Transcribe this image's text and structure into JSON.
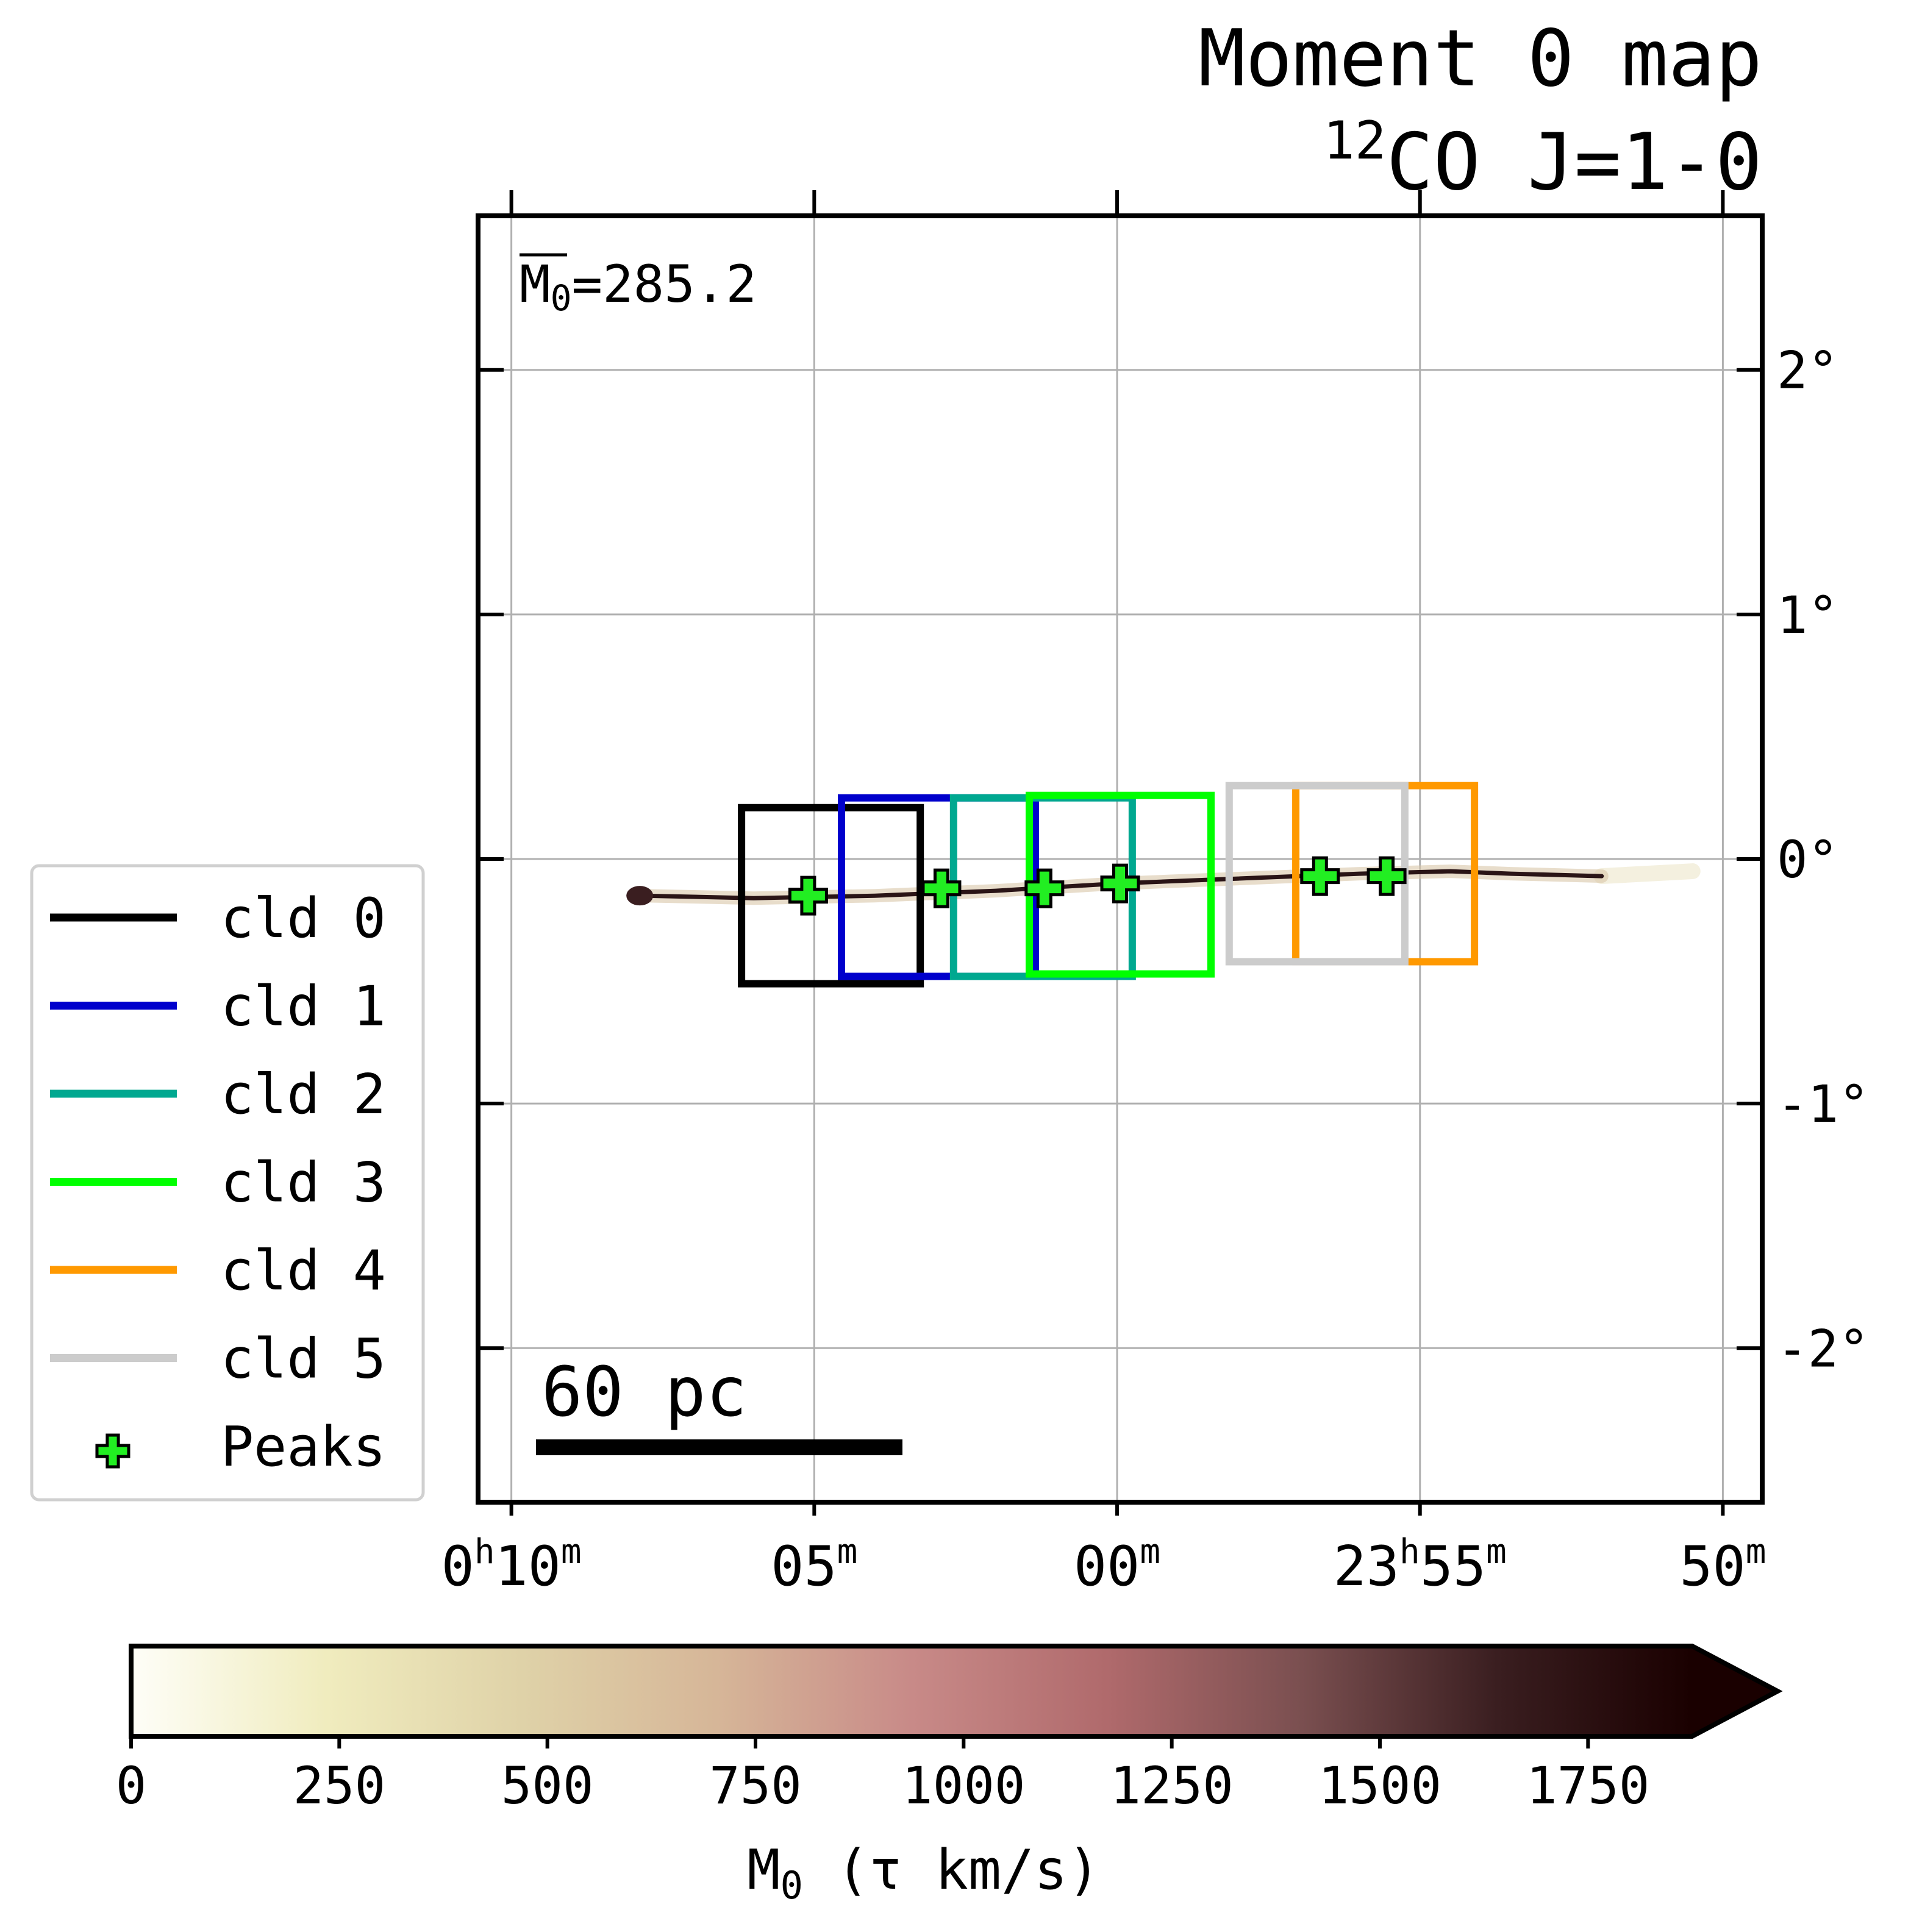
{
  "chart_data": {
    "type": "heatmap",
    "title_line1": "Moment 0 map",
    "title_line2_sup": "12",
    "title_line2_rest": "CO J=1-0",
    "mean_label_base": "M",
    "mean_label_sub": "0",
    "mean_label_value": "=285.2",
    "x_axis": {
      "scale": "right_ascension",
      "ticks_min": [
        10,
        5,
        0,
        -5,
        -10
      ],
      "tick_labels": [
        {
          "h": "0",
          "m": "10"
        },
        {
          "h": "",
          "m": "05"
        },
        {
          "h": "",
          "m": "00"
        },
        {
          "h": "23",
          "m": "55"
        },
        {
          "h": "",
          "m": "50"
        }
      ],
      "xlim_min": [
        10.55,
        -10.65
      ]
    },
    "y_axis": {
      "ticks": [
        2,
        1,
        0,
        -1,
        -2
      ],
      "tick_labels": [
        "2°",
        "1°",
        "0°",
        "-1°",
        "-2°"
      ],
      "ylim": [
        -2.63,
        2.63
      ],
      "side": "right"
    },
    "grid": true,
    "filament": {
      "x_min": [
        7.8,
        6.0,
        4.0,
        2.0,
        0.0,
        -2.0,
        -4.0,
        -5.5,
        -6.5,
        -8.0
      ],
      "y_deg": [
        -0.15,
        -0.16,
        -0.15,
        -0.13,
        -0.1,
        -0.08,
        -0.06,
        -0.05,
        -0.06,
        -0.07
      ],
      "faint_extent_min": [
        -8.0,
        -9.5
      ]
    },
    "clouds": [
      {
        "name": "cld 0",
        "color": "#000000",
        "x_min": [
          3.25,
          6.2
        ],
        "y_deg": [
          -0.51,
          0.21
        ]
      },
      {
        "name": "cld 1",
        "color": "#0000cc",
        "x_min": [
          1.35,
          4.55
        ],
        "y_deg": [
          -0.48,
          0.25
        ]
      },
      {
        "name": "cld 2",
        "color": "#00a890",
        "x_min": [
          -0.25,
          2.7
        ],
        "y_deg": [
          -0.48,
          0.25
        ]
      },
      {
        "name": "cld 3",
        "color": "#00ff00",
        "x_min": [
          -1.55,
          1.45
        ],
        "y_deg": [
          -0.47,
          0.26
        ]
      },
      {
        "name": "cld 4",
        "color": "#ff9900",
        "x_min": [
          -5.9,
          -2.95
        ],
        "y_deg": [
          -0.42,
          0.3
        ]
      },
      {
        "name": "cld 5",
        "color": "#cccccc",
        "x_min": [
          -4.75,
          -1.85
        ],
        "y_deg": [
          -0.42,
          0.3
        ]
      }
    ],
    "peaks": {
      "name": "Peaks",
      "x_min": [
        5.1,
        2.9,
        1.2,
        -0.05,
        -3.35,
        -4.45
      ],
      "y_deg": [
        -0.15,
        -0.12,
        -0.12,
        -0.1,
        -0.07,
        -0.07
      ]
    },
    "scalebar_label": "60 pc",
    "colorbar": {
      "label_base": "M",
      "label_sub": "0",
      "label_rest": " (τ km/s)",
      "range": [
        0,
        1875
      ],
      "ticks": [
        0,
        250,
        500,
        750,
        1000,
        1250,
        1500,
        1750
      ],
      "extend": "max",
      "colors": [
        "#fefef8",
        "#f0ecbe",
        "#dfd2a8",
        "#d6b698",
        "#c88a88",
        "#b06a6c",
        "#7a4f50",
        "#3a1e20",
        "#1a0000"
      ]
    }
  }
}
